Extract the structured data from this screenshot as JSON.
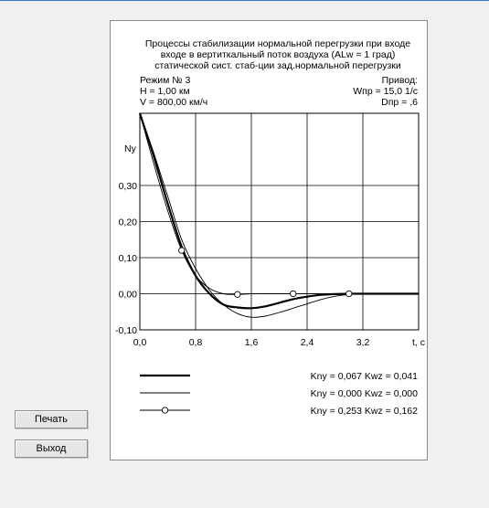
{
  "colors": {
    "window_bg": "#f0f0f0",
    "panel_bg": "#ffffff",
    "accent": "#3c78c8"
  },
  "buttons": {
    "print_label": "Печать",
    "exit_label": "Выход"
  },
  "header": {
    "title_lines": [
      "Процессы стабилизации нормальной перегрузки при входе",
      "входе в вертиткальный поток воздуха (ALw = 1 град)",
      "статической сист. стаб-ции зад.нормальной перегрузки"
    ],
    "mode": "Режим № 3",
    "height": "H = 1,00 км",
    "speed": "V = 800,00 км/ч",
    "drive_label": "Привод:",
    "wnp": "Wпр = 15,0  1/с",
    "dnp": "Dпр = ,6"
  },
  "chart_data": {
    "type": "line",
    "ylabel": "Ny",
    "xlabel": "t, с",
    "xlim": [
      0,
      4.0
    ],
    "ylim": [
      -0.1,
      0.5
    ],
    "xticks": [
      "0,0",
      "0,8",
      "1,6",
      "2,4",
      "3,2"
    ],
    "yticks": [
      "0,30",
      "0,20",
      "0,10",
      "0,00",
      "-0,10"
    ],
    "grid": true,
    "legend_position": "bottom",
    "series": [
      {
        "name": "Kny = 0,067 Kwz = 0,041",
        "style": "thick",
        "x": [
          0,
          0.2,
          0.4,
          0.6,
          0.8,
          1.0,
          1.2,
          1.4,
          1.6,
          1.8,
          2.0,
          2.2,
          2.4,
          2.6,
          2.8,
          3.0,
          3.2,
          3.6,
          4.0
        ],
        "y": [
          0.5,
          0.38,
          0.25,
          0.13,
          0.05,
          0.0,
          -0.03,
          -0.038,
          -0.04,
          -0.035,
          -0.025,
          -0.015,
          -0.008,
          -0.003,
          -0.001,
          0.0,
          0.0,
          0.0,
          0.0
        ]
      },
      {
        "name": "Kny = 0,000 Kwz = 0,000",
        "style": "thin",
        "x": [
          0,
          0.2,
          0.4,
          0.6,
          0.8,
          1.0,
          1.2,
          1.4,
          1.6,
          1.8,
          2.0,
          2.2,
          2.4,
          2.6,
          2.8,
          3.0,
          3.2,
          3.6,
          4.0
        ],
        "y": [
          0.5,
          0.39,
          0.27,
          0.15,
          0.07,
          0.01,
          -0.03,
          -0.055,
          -0.065,
          -0.062,
          -0.052,
          -0.04,
          -0.028,
          -0.016,
          -0.007,
          -0.002,
          0.0,
          0.0,
          0.0
        ]
      },
      {
        "name": "Kny = 0,253 Kwz = 0,162",
        "style": "circles",
        "x": [
          0,
          0.2,
          0.4,
          0.6,
          0.8,
          1.0,
          1.2,
          1.4,
          1.6,
          1.8,
          2.0,
          2.2,
          2.4,
          2.6,
          2.8,
          3.0,
          3.2,
          3.6,
          4.0
        ],
        "y": [
          0.5,
          0.36,
          0.23,
          0.12,
          0.05,
          0.015,
          0.0,
          -0.002,
          0.0,
          0.0,
          0.0,
          0.0,
          0.0,
          0.0,
          0.0,
          0.0,
          0.0,
          0.0,
          0.0
        ],
        "markers_x": [
          0.6,
          1.4,
          2.2,
          3.0
        ]
      }
    ]
  }
}
